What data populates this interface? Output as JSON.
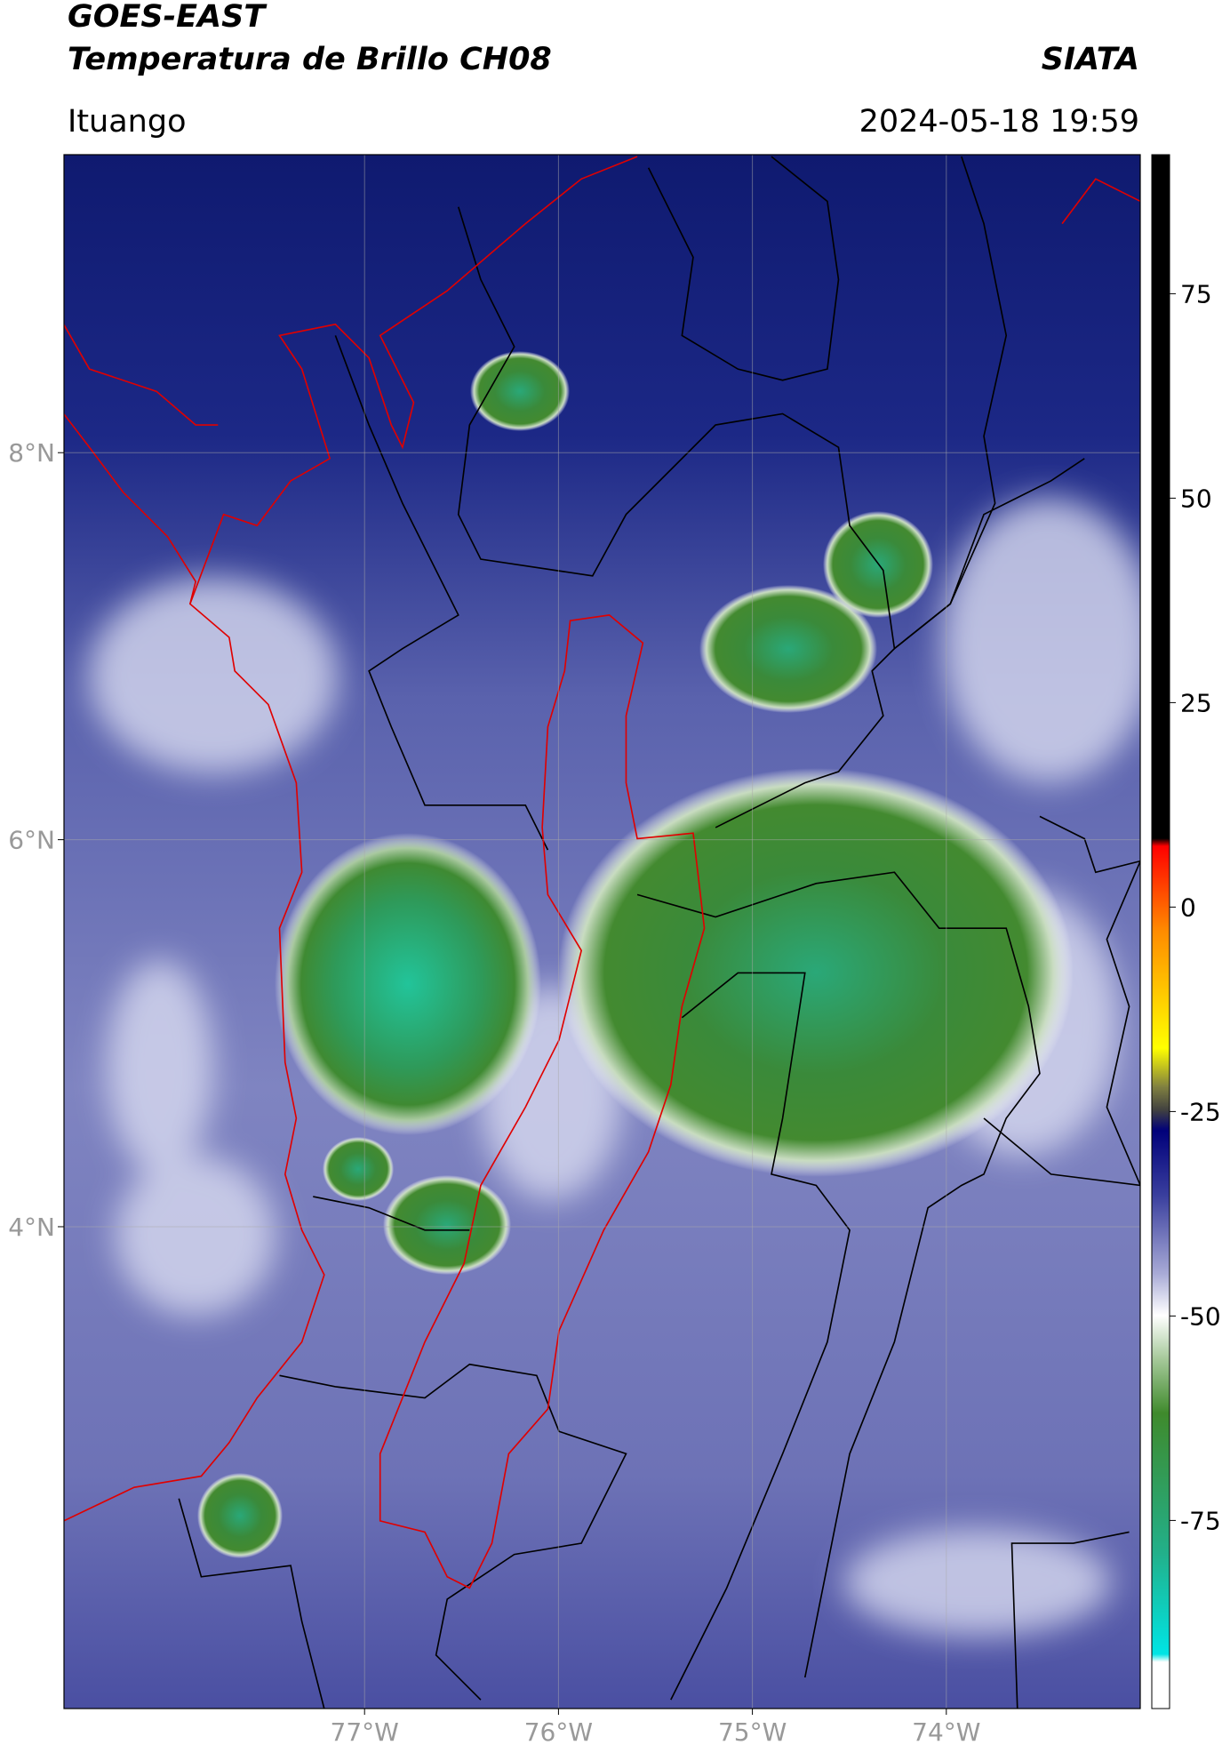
{
  "chart_data": {
    "type": "map",
    "title": "GOES-EAST",
    "subtitle": "Temperatura de Brillo CH08",
    "source": "SIATA",
    "location": "Ituango",
    "timestamp": "2024-05-18 19:59",
    "xlim": [
      -78.55,
      -73.0
    ],
    "ylim": [
      1.51,
      9.54
    ],
    "xticks": [
      {
        "value": -77,
        "label": "77°W"
      },
      {
        "value": -76,
        "label": "76°W"
      },
      {
        "value": -75,
        "label": "75°W"
      },
      {
        "value": -74,
        "label": "74°W"
      }
    ],
    "yticks": [
      {
        "value": 4,
        "label": "4°N"
      },
      {
        "value": 6,
        "label": "6°N"
      },
      {
        "value": 8,
        "label": "8°N"
      }
    ],
    "grid": true,
    "colorbar": {
      "lim": [
        -98,
        92
      ],
      "ticks": [
        -75,
        -50,
        -25,
        0,
        25,
        50,
        75
      ]
    }
  }
}
